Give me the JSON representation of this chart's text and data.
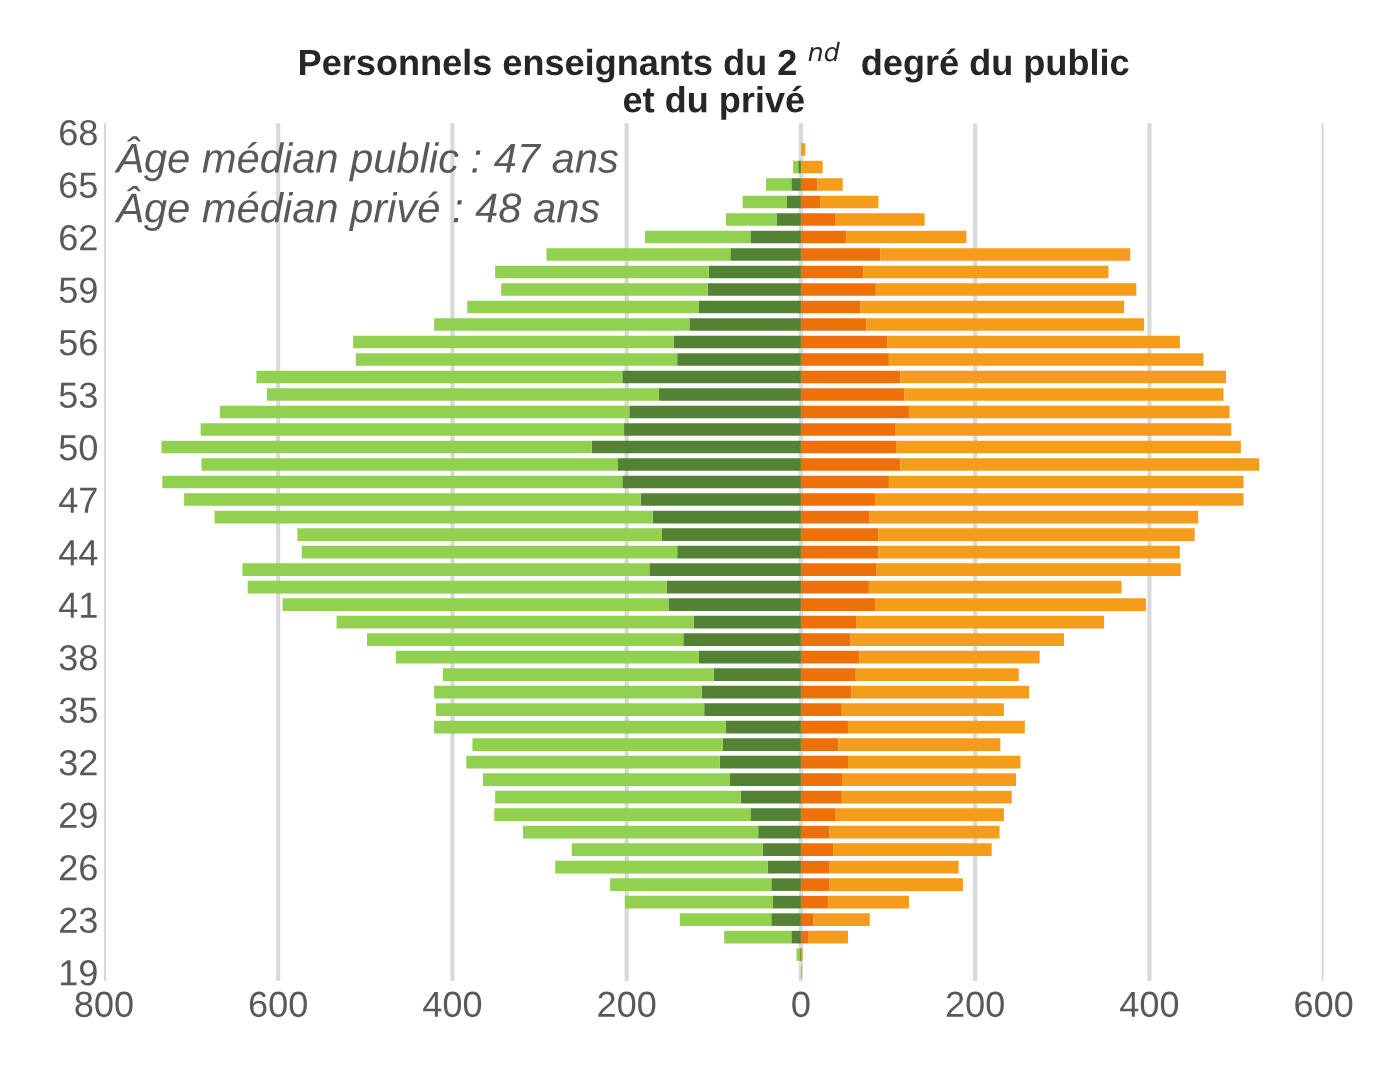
{
  "chart_data": {
    "type": "bar",
    "orientation": "horizontal",
    "stacked": true,
    "title": "Personnels enseignants du 2 $^{nd}$  degré du public\net du privé",
    "annotations": [
      "Âge médian public : 47 ans",
      "Âge médian privé : 48 ans"
    ],
    "categories": [
      "68",
      null,
      null,
      "65",
      null,
      null,
      "62",
      null,
      null,
      "59",
      null,
      null,
      "56",
      null,
      null,
      "53",
      null,
      null,
      "50",
      null,
      null,
      "47",
      null,
      null,
      "44",
      null,
      null,
      "41",
      null,
      null,
      "38",
      null,
      null,
      "35",
      null,
      null,
      "32",
      null,
      null,
      "29",
      null,
      null,
      "26",
      null,
      null,
      "23",
      null,
      null,
      "19"
    ],
    "series": [
      {
        "color": "#548235",
        "values": [
          0,
          0,
          -3,
          -11,
          -16,
          -28,
          -58,
          -81,
          -106,
          -107,
          -117,
          -128,
          -146,
          -142,
          -205,
          -163,
          -197,
          -203,
          -240,
          -210,
          -205,
          -184,
          -170,
          -160,
          -142,
          -174,
          -154,
          -152,
          -123,
          -135,
          -117,
          -100,
          -114,
          -111,
          -86,
          -90,
          -93,
          -82,
          -69,
          -58,
          -49,
          -44,
          -38,
          -34,
          -32,
          -34,
          -11,
          -1,
          0
        ]
      },
      {
        "color": "#92d050",
        "values": [
          0,
          0,
          -6,
          -29,
          -51,
          -58,
          -121,
          -211,
          -245,
          -237,
          -266,
          -293,
          -368,
          -369,
          -420,
          -450,
          -470,
          -486,
          -494,
          -478,
          -528,
          -524,
          -503,
          -418,
          -431,
          -467,
          -481,
          -443,
          -410,
          -363,
          -348,
          -311,
          -307,
          -308,
          -335,
          -287,
          -291,
          -283,
          -282,
          -294,
          -270,
          -219,
          -244,
          -185,
          -170,
          -105,
          -77,
          -4,
          0
        ]
      },
      {
        "color": "#ed7009",
        "values": [
          0,
          0,
          0,
          19,
          22,
          40,
          52,
          91,
          72,
          86,
          68,
          75,
          99,
          101,
          114,
          119,
          124,
          108,
          110,
          114,
          101,
          85,
          79,
          89,
          89,
          87,
          78,
          85,
          64,
          57,
          67,
          63,
          58,
          47,
          54,
          43,
          54,
          48,
          47,
          40,
          33,
          37,
          33,
          33,
          31,
          14,
          9,
          0,
          0
        ]
      },
      {
        "color": "#f59c1a",
        "values": [
          0,
          5,
          25,
          29,
          67,
          102,
          138,
          287,
          281,
          299,
          303,
          319,
          336,
          361,
          374,
          366,
          368,
          386,
          395,
          412,
          407,
          423,
          377,
          363,
          346,
          349,
          290,
          311,
          284,
          245,
          207,
          187,
          204,
          186,
          203,
          186,
          198,
          199,
          195,
          193,
          195,
          182,
          148,
          153,
          93,
          65,
          45,
          2,
          1
        ]
      }
    ],
    "xlim": [
      -800,
      600
    ],
    "xticks": [
      {
        "value": -800,
        "label": "800"
      },
      {
        "value": -600,
        "label": "600"
      },
      {
        "value": -400,
        "label": "400"
      },
      {
        "value": -200,
        "label": "200"
      },
      0,
      200,
      400,
      600
    ],
    "grid": "x"
  }
}
